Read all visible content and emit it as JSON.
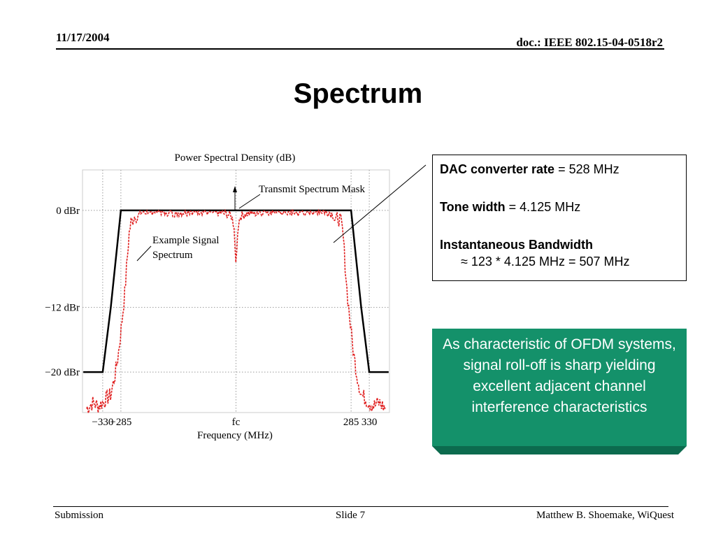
{
  "header": {
    "date": "11/17/2004",
    "doc": "doc.: IEEE 802.15-04-0518r2"
  },
  "title": "Spectrum",
  "info": {
    "dac_label": "DAC converter rate",
    "dac_value": " = 528 MHz",
    "tone_label": "Tone width",
    "tone_value": " = 4.125 MHz",
    "bw_label": "Instantaneous Bandwidth",
    "bw_formula": "≈ 123 * 4.125 MHz = 507 MHz"
  },
  "note": "As characteristic of OFDM systems, signal roll-off is sharp yielding excellent adjacent channel interference characteristics",
  "colors": {
    "note_bg": "#14916a",
    "note_bevel": "#0c6b4e",
    "signal": "#e02020",
    "mask": "#000000"
  },
  "footer": {
    "left": "Submission",
    "center": "Slide 7",
    "right": "Matthew B. Shoemake, WiQuest"
  },
  "chart_data": {
    "type": "line",
    "title": "Power Spectral Density (dB)",
    "xlabel": "Frequency (MHz)",
    "ylabel": "",
    "x_ticks": [
      {
        "value": -330,
        "label": "−330"
      },
      {
        "value": -285,
        "label": "−285"
      },
      {
        "value": 0,
        "label": "fc"
      },
      {
        "value": 285,
        "label": "285"
      },
      {
        "value": 330,
        "label": "330"
      }
    ],
    "y_ticks": [
      {
        "value": 0,
        "label": "0  dBr"
      },
      {
        "value": -12,
        "label": "−12 dBr"
      },
      {
        "value": -20,
        "label": "−20 dBr"
      }
    ],
    "xlim": [
      -380,
      380
    ],
    "ylim": [
      -25,
      5
    ],
    "grid": true,
    "series": [
      {
        "name": "Transmit Spectrum Mask",
        "style": "solid",
        "x": [
          -378,
          -330,
          -310,
          -285,
          285,
          310,
          330,
          378
        ],
        "y": [
          -20,
          -20,
          -12,
          0,
          0,
          -12,
          -20,
          -20
        ]
      },
      {
        "name": "Example Signal Spectrum",
        "style": "dashed",
        "x": [
          -370,
          -355,
          -340,
          -325,
          -310,
          -300,
          -292,
          -285,
          -275,
          -265,
          -260,
          -255,
          -250,
          -245,
          -240,
          -230,
          -200,
          -150,
          -100,
          -50,
          -20,
          -10,
          -5,
          -3,
          0,
          3,
          5,
          10,
          20,
          50,
          100,
          150,
          200,
          230,
          240,
          245,
          250,
          255,
          260,
          265,
          275,
          285,
          292,
          300,
          310,
          325,
          340,
          355,
          370
        ],
        "y": [
          -24.5,
          -23.8,
          -24.2,
          -23.5,
          -22.8,
          -20.5,
          -18,
          -15,
          -10,
          -3,
          -1.5,
          -1,
          -0.6,
          -1.2,
          -0.5,
          -0.2,
          0,
          -0.3,
          0,
          -0.2,
          -0.5,
          -0.8,
          -2,
          -4,
          -6.8,
          -4,
          -2,
          -0.8,
          -0.5,
          -0.2,
          0,
          -0.3,
          0,
          -0.2,
          -0.5,
          -1.2,
          -0.6,
          -1,
          -1.5,
          -3,
          -10,
          -15,
          -18,
          -20.5,
          -22.8,
          -23.5,
          -24.2,
          -23.8,
          -24.5
        ]
      }
    ],
    "annotations": [
      "Transmit Spectrum Mask",
      "Example Signal Spectrum"
    ]
  }
}
